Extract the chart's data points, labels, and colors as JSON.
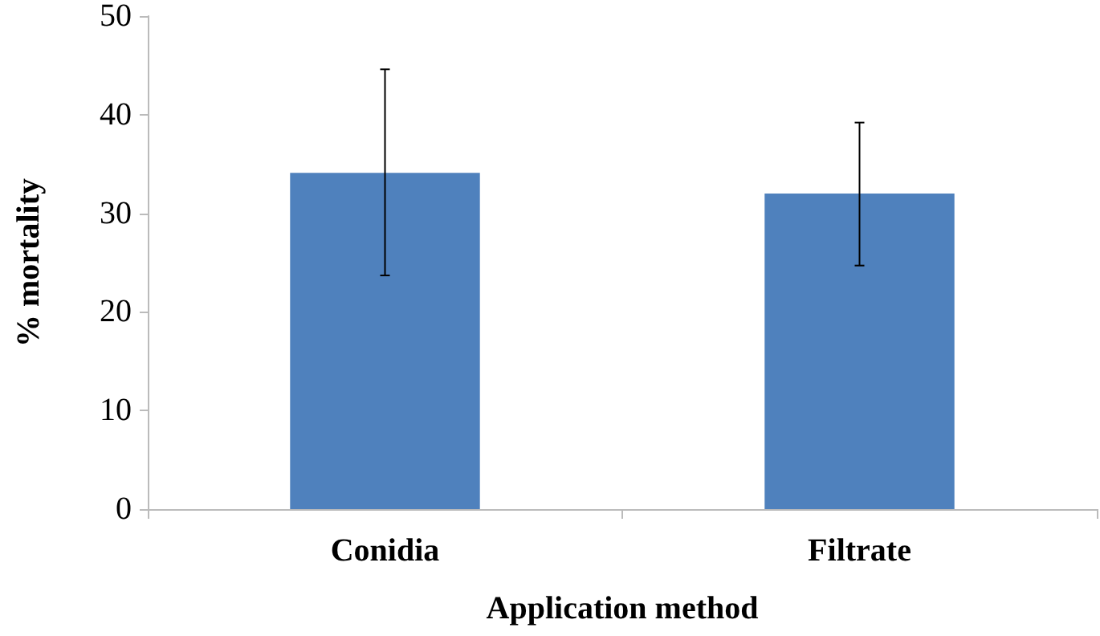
{
  "chart_data": {
    "type": "bar",
    "xlabel": "Application method",
    "ylabel": "% mortality",
    "categories": [
      "Conidia",
      "Filtrate"
    ],
    "values": [
      34.1,
      32.0
    ],
    "errors": [
      [
        23.7,
        44.6
      ],
      [
        24.7,
        39.2
      ]
    ],
    "color": "#4f81bd",
    "ylim": [
      0,
      50
    ],
    "yticks": [
      0,
      10,
      20,
      30,
      40,
      50
    ],
    "grid": false
  }
}
